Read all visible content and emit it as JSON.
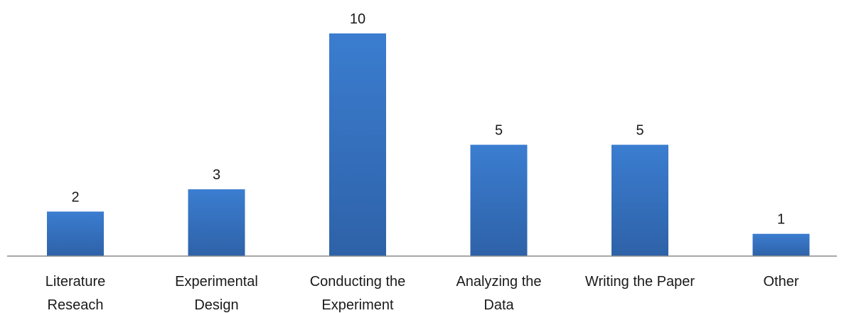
{
  "chart_data": {
    "type": "bar",
    "title": "",
    "xlabel": "",
    "ylabel": "",
    "categories": [
      [
        "Literature",
        "Reseach"
      ],
      [
        "Experimental",
        "Design"
      ],
      [
        "Conducting the",
        "Experiment"
      ],
      [
        "Analyzing the",
        "Data"
      ],
      [
        "Writing the Paper"
      ],
      [
        "Other"
      ]
    ],
    "values": [
      2,
      3,
      10,
      5,
      5,
      1
    ],
    "ylim": [
      0,
      10
    ],
    "grid": false,
    "legend": "none",
    "data_labels": true,
    "colors": {
      "bar_top": "#3b7dd0",
      "bar_bottom": "#2e62a8",
      "axis": "#8c8c8c",
      "text": "#1a1a1a"
    }
  }
}
